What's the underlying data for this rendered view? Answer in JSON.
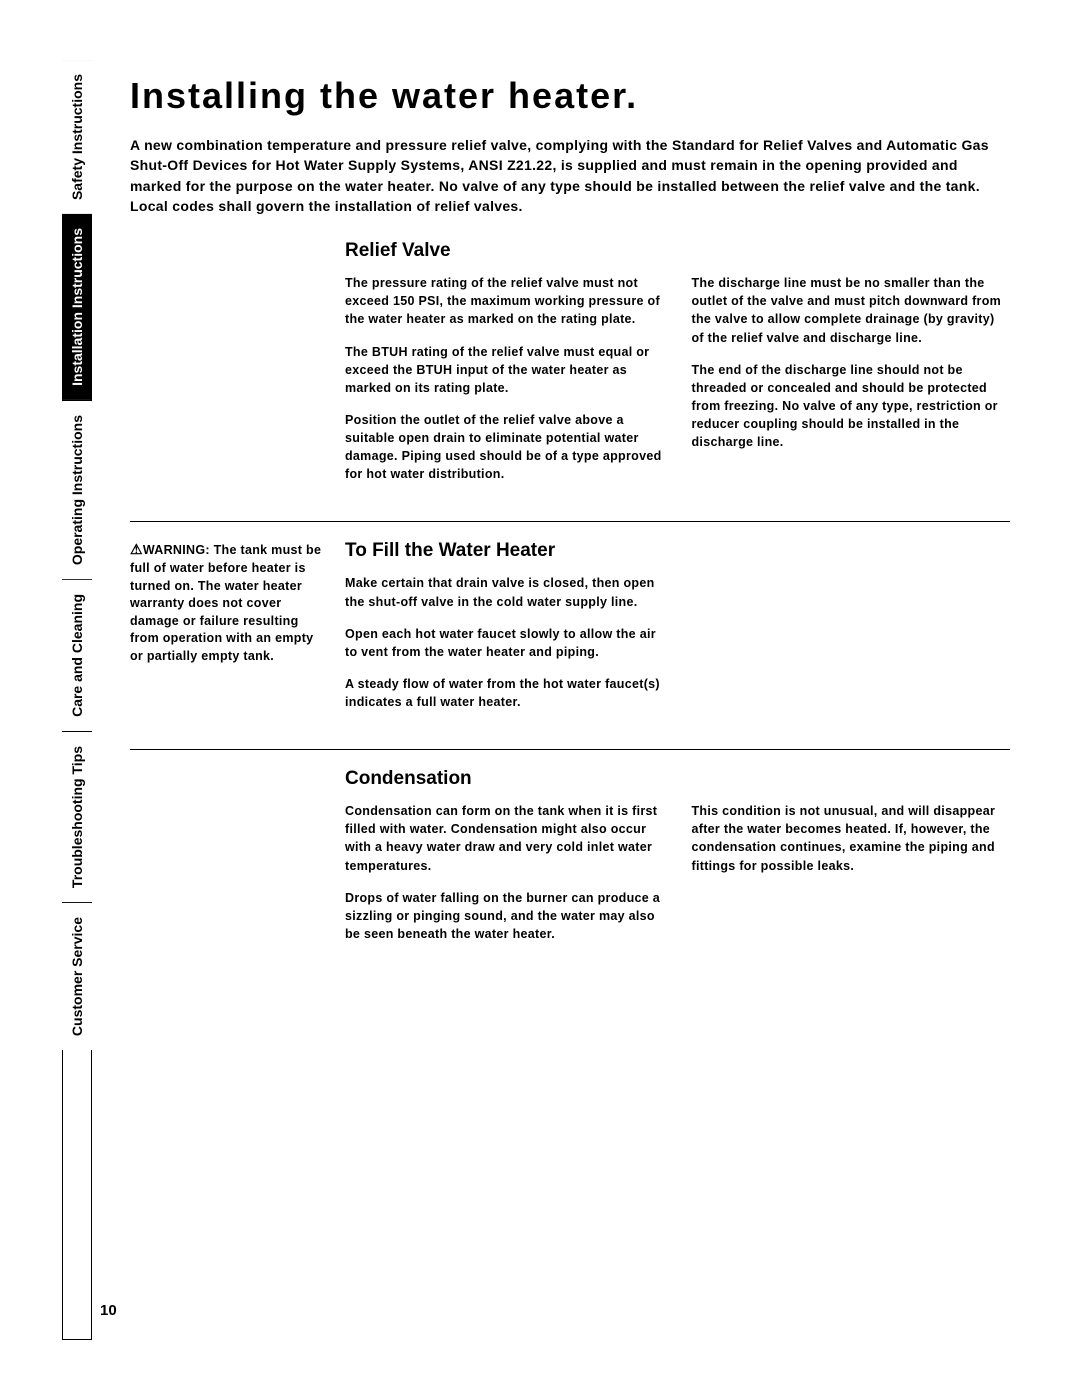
{
  "page_number": "10",
  "page_title": "Installing the water heater.",
  "intro": "A new combination temperature and pressure relief valve, complying with the Standard for Relief Valves and Automatic Gas Shut-Off Devices for Hot Water Supply Systems, ANSI Z21.22, is supplied and must remain in the opening provided and marked for the purpose on the water heater. No valve of any type should be installed between the relief valve and the tank. Local codes shall govern the installation of relief valves.",
  "tabs": [
    {
      "label": "Safety Instructions",
      "active": false
    },
    {
      "label": "Installation Instructions",
      "active": true
    },
    {
      "label": "Operating Instructions",
      "active": false
    },
    {
      "label": "Care and Cleaning",
      "active": false
    },
    {
      "label": "Troubleshooting Tips",
      "active": false
    },
    {
      "label": "Customer Service",
      "active": false
    }
  ],
  "sections": {
    "relief": {
      "heading": "Relief Valve",
      "left": {
        "p1": "The pressure rating of the relief valve must not exceed 150 PSI, the maximum working pressure of the water heater as marked on the rating plate.",
        "p2": "The BTUH rating of the relief valve must equal or exceed the BTUH input of the water heater as marked on its rating plate.",
        "p3": "Position the outlet of the relief valve above a suitable open drain to eliminate potential water damage. Piping used should be of a type approved for hot water distribution."
      },
      "right": {
        "p1": "The discharge line must be no smaller than the outlet of the valve and must pitch downward from the valve to allow complete drainage (by gravity) of the relief valve and discharge line.",
        "p2": "The end of the discharge line should not be threaded or concealed and should be protected from freezing. No valve of any type, restriction or reducer coupling should be installed in the discharge line."
      }
    },
    "fill": {
      "heading": "To Fill the Water Heater",
      "warning_label": "WARNING:",
      "warning_text": " The tank must be full of water before heater is turned on. The water heater warranty does not cover damage or failure resulting from operation with an empty or partially empty tank.",
      "p1": "Make certain that drain valve is closed, then open the shut-off valve in the cold water supply line.",
      "p2": "Open each hot water faucet slowly to allow the air to vent from the water heater and piping.",
      "p3": "A steady flow of water from the hot water faucet(s) indicates a full water heater."
    },
    "condensation": {
      "heading": "Condensation",
      "left": {
        "p1": "Condensation can form on the tank when it is first filled with water. Condensation might also occur with a heavy water draw and very cold inlet water temperatures.",
        "p2": "Drops of water falling on the burner can produce a sizzling or pinging sound, and the water may also be seen beneath the water heater."
      },
      "right": {
        "p1": "This condition is not unusual, and will disappear after the water becomes heated. If, however, the condensation continues, examine the piping and fittings for possible leaks."
      }
    }
  }
}
